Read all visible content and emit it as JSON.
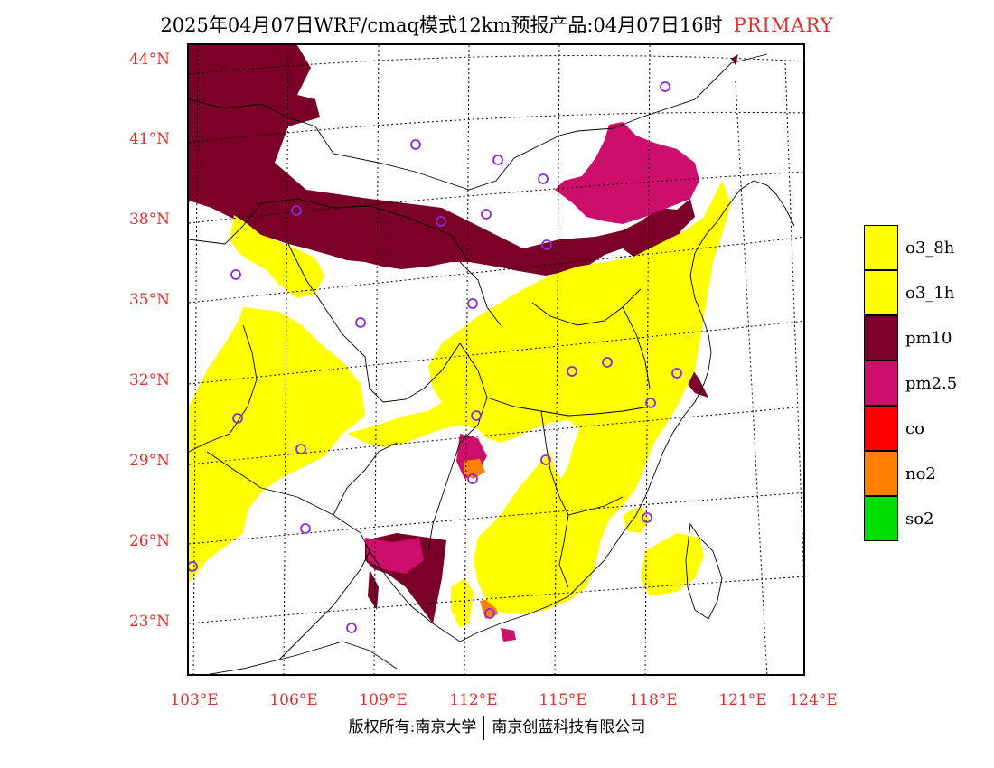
{
  "title": {
    "main": "2025年04月07日WRF/cmaq模式12km预报产品:04月07日16时",
    "tag": "PRIMARY"
  },
  "map": {
    "lat_labels": [
      "44°N",
      "41°N",
      "38°N",
      "35°N",
      "32°N",
      "29°N",
      "26°N",
      "23°N"
    ],
    "lon_labels": [
      "103°E",
      "106°E",
      "109°E",
      "112°E",
      "115°E",
      "118°E",
      "121°E",
      "124°E"
    ],
    "label_color": "#e23030"
  },
  "legend": {
    "items": [
      {
        "label": "o3_8h",
        "color": "#ffff00"
      },
      {
        "label": "o3_1h",
        "color": "#ffff00"
      },
      {
        "label": "pm10",
        "color": "#7a0027"
      },
      {
        "label": "pm2.5",
        "color": "#cc0f6b"
      },
      {
        "label": "co",
        "color": "#ff0000"
      },
      {
        "label": "no2",
        "color": "#ff7f00"
      },
      {
        "label": "so2",
        "color": "#00dd00"
      }
    ]
  },
  "footer": {
    "left": "版权所有:南京大学",
    "right": "南京创蓝科技有限公司"
  },
  "colors": {
    "o3": "#ffff00",
    "pm10": "#7a0027",
    "pm25": "#cc0f6b",
    "no2": "#ff7f00",
    "station": "#8a2be2"
  }
}
